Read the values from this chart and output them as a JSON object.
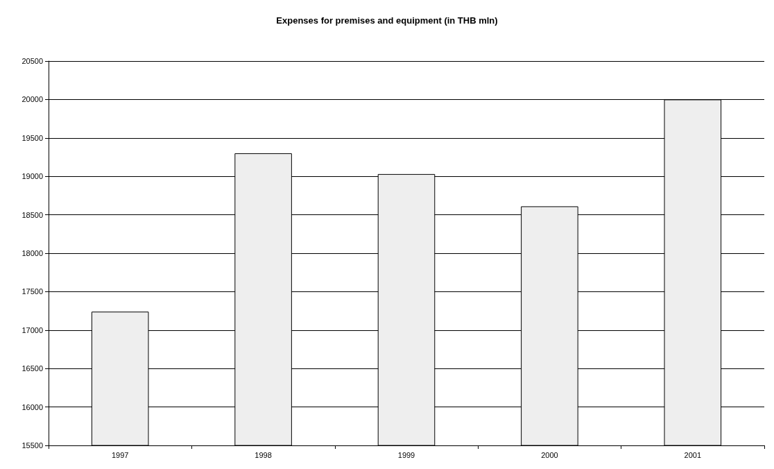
{
  "chart_data": {
    "type": "bar",
    "title": "Expenses for premises and equipment (in THB mln)",
    "categories": [
      "1997",
      "1998",
      "1999",
      "2000",
      "2001"
    ],
    "values": [
      17240,
      19300,
      19030,
      18610,
      20000
    ],
    "color": "#eeeeee",
    "ylim": [
      15500,
      20500
    ],
    "yticks": [
      15500,
      16000,
      16500,
      17000,
      17500,
      18000,
      18500,
      19000,
      19500,
      20000,
      20500
    ],
    "grid": "y"
  }
}
